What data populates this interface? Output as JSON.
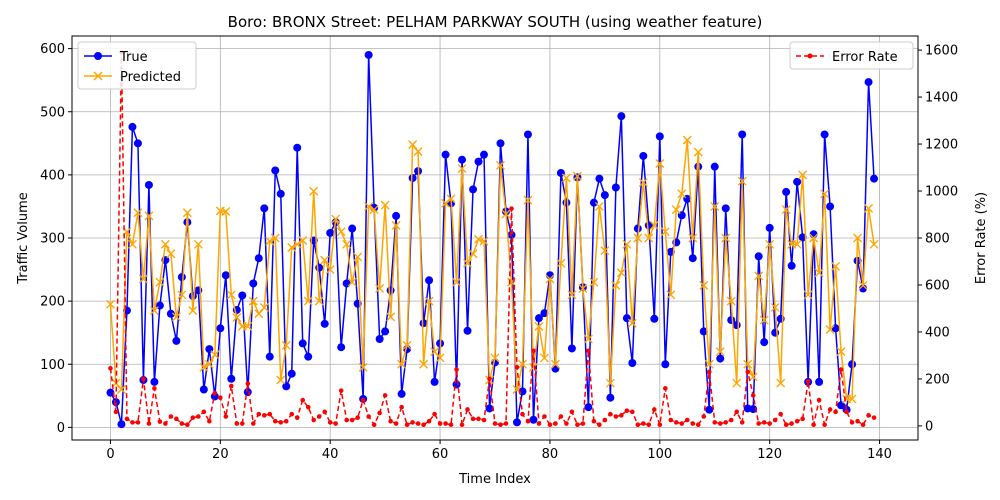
{
  "chart_data": {
    "type": "line",
    "title": "Boro: BRONX Street: PELHAM PARKWAY SOUTH (using weather feature)",
    "xlabel": "Time Index",
    "ylabel": "Traffic Volume",
    "ylabel_right": "Error Rate (%)",
    "xlim": [
      -7,
      147
    ],
    "ylim": [
      -20,
      620
    ],
    "ylim_right": [
      -60,
      1660
    ],
    "x_ticks": [
      0,
      20,
      40,
      60,
      80,
      100,
      120,
      140
    ],
    "y_ticks": [
      0,
      100,
      200,
      300,
      400,
      500,
      600
    ],
    "y_ticks_right": [
      0,
      200,
      400,
      600,
      800,
      1000,
      1200,
      1400,
      1600
    ],
    "grid": true,
    "legend_left": "top-left",
    "legend_right": "top-right",
    "colors": {
      "true": "#0000ff",
      "predicted": "#ffa500",
      "error": "#ff0000",
      "grid": "#b0b0b0"
    },
    "series": [
      {
        "name": "True",
        "axis": "left",
        "color": "#0000ff",
        "marker": "circle",
        "values": [
          55,
          40,
          5,
          185,
          476,
          450,
          75,
          384,
          72,
          193,
          265,
          180,
          137,
          238,
          325,
          208,
          217,
          60,
          124,
          49,
          157,
          241,
          77,
          186,
          209,
          56,
          228,
          268,
          347,
          112,
          407,
          370,
          65,
          85,
          443,
          133,
          112,
          296,
          253,
          164,
          308,
          325,
          127,
          228,
          315,
          196,
          45,
          590,
          348,
          140,
          152,
          217,
          335,
          53,
          124,
          395,
          406,
          165,
          233,
          72,
          133,
          432,
          355,
          68,
          424,
          153,
          377,
          421,
          432,
          30,
          103,
          450,
          342,
          305,
          8,
          57,
          464,
          12,
          173,
          181,
          241,
          93,
          403,
          356,
          125,
          396,
          222,
          32,
          356,
          394,
          368,
          47,
          380,
          493,
          173,
          102,
          315,
          430,
          320,
          172,
          461,
          100,
          278,
          293,
          336,
          362,
          268,
          413,
          152,
          28,
          413,
          109,
          347,
          170,
          162,
          464,
          30,
          29,
          271,
          135,
          316,
          150,
          172,
          373,
          256,
          389,
          301,
          72,
          306,
          72,
          464,
          350,
          157,
          35,
          28,
          100,
          264,
          220,
          547,
          394
        ]
      },
      {
        "name": "Predicted",
        "axis": "left",
        "color": "#ffa500",
        "marker": "x",
        "values": [
          195,
          70,
          60,
          310,
          290,
          340,
          235,
          335,
          185,
          230,
          290,
          275,
          175,
          210,
          340,
          185,
          290,
          95,
          100,
          115,
          343,
          342,
          210,
          174,
          160,
          160,
          200,
          180,
          190,
          295,
          300,
          75,
          130,
          285,
          290,
          296,
          200,
          374,
          200,
          265,
          250,
          330,
          310,
          290,
          230,
          270,
          95,
          350,
          345,
          220,
          352,
          175,
          320,
          100,
          130,
          448,
          437,
          100,
          200,
          120,
          110,
          355,
          362,
          230,
          410,
          260,
          275,
          298,
          295,
          75,
          110,
          415,
          338,
          230,
          60,
          100,
          360,
          95,
          160,
          110,
          235,
          100,
          260,
          395,
          210,
          398,
          220,
          140,
          230,
          350,
          280,
          70,
          225,
          245,
          290,
          165,
          300,
          388,
          300,
          320,
          418,
          310,
          210,
          345,
          370,
          455,
          300,
          436,
          225,
          100,
          350,
          120,
          300,
          200,
          70,
          390,
          100,
          80,
          240,
          170,
          290,
          190,
          70,
          345,
          290,
          290,
          400,
          210,
          300,
          245,
          370,
          155,
          255,
          120,
          45,
          45,
          300,
          225,
          347,
          290
        ]
      },
      {
        "name": "Error Rate",
        "axis": "right",
        "color": "#ff0000",
        "marker": "circle-small",
        "linestyle": "dashed",
        "values": [
          245,
          60,
          1590,
          30,
          15,
          15,
          200,
          10,
          160,
          18,
          10,
          40,
          30,
          10,
          5,
          35,
          40,
          60,
          20,
          140,
          120,
          40,
          170,
          10,
          10,
          180,
          10,
          50,
          45,
          50,
          20,
          15,
          20,
          50,
          35,
          110,
          80,
          25,
          40,
          60,
          15,
          10,
          150,
          25,
          25,
          35,
          110,
          40,
          5,
          55,
          130,
          20,
          10,
          80,
          5,
          15,
          10,
          5,
          20,
          50,
          10,
          10,
          5,
          240,
          5,
          70,
          30,
          30,
          25,
          200,
          10,
          5,
          10,
          925,
          250,
          50,
          20,
          320,
          10,
          40,
          5,
          10,
          40,
          10,
          60,
          5,
          10,
          320,
          20,
          5,
          25,
          50,
          40,
          45,
          65,
          60,
          5,
          10,
          5,
          70,
          5,
          160,
          25,
          15,
          10,
          25,
          10,
          5,
          40,
          230,
          15,
          10,
          15,
          25,
          60,
          15,
          230,
          130,
          10,
          15,
          10,
          25,
          50,
          5,
          10,
          20,
          30,
          190,
          5,
          110,
          5,
          70,
          60,
          240,
          60,
          15,
          20,
          5,
          45,
          35
        ]
      }
    ]
  }
}
